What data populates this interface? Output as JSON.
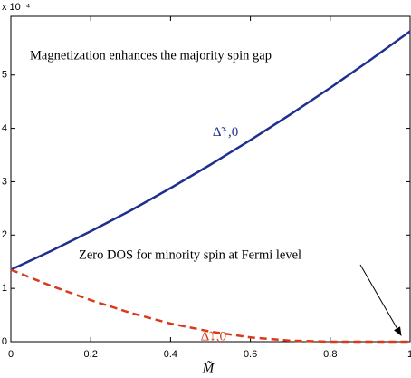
{
  "chart_data": {
    "type": "line",
    "axis_multiplier": "x 10⁻⁴",
    "x_label": "M̃",
    "x": [
      0,
      0.1,
      0.2,
      0.3,
      0.4,
      0.5,
      0.6,
      0.7,
      0.8,
      0.9,
      1
    ],
    "series": [
      {
        "name": "Δ̃↑,0",
        "color": "#1f2f8f",
        "dashed": false,
        "values": [
          1.35,
          1.7,
          2.07,
          2.46,
          2.88,
          3.32,
          3.78,
          4.26,
          4.76,
          5.28,
          5.82
        ]
      },
      {
        "name": "Δ̃↓,0",
        "color": "#d93a1a",
        "dashed": true,
        "values": [
          1.35,
          1.05,
          0.78,
          0.54,
          0.34,
          0.19,
          0.08,
          0.02,
          0,
          0,
          0
        ]
      }
    ],
    "xlim": [
      0,
      1
    ],
    "xticks": [
      0,
      0.2,
      0.4,
      0.6,
      0.8,
      1
    ],
    "ylim": [
      0,
      6.1
    ],
    "yticks": [
      0,
      1,
      2,
      3,
      4,
      5
    ],
    "annotations": [
      "Magnetization enhances the majority spin gap",
      "Zero DOS for minority spin at Fermi level"
    ],
    "grid": false
  }
}
